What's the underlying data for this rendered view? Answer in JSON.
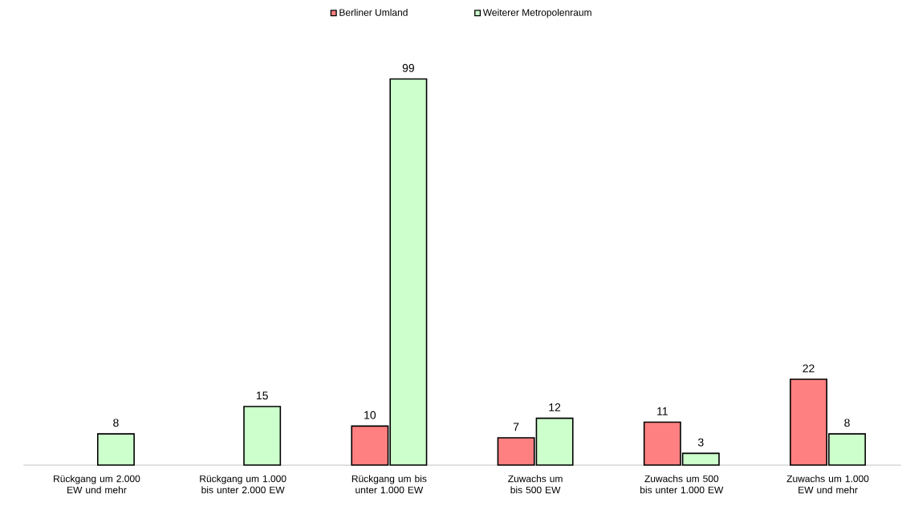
{
  "chart_data": {
    "type": "bar",
    "categories": [
      "Rückgang um 2.000 EW und mehr",
      "Rückgang um 1.000 bis unter 2.000 EW",
      "Rückgang um bis unter 1.000 EW",
      "Zuwachs um bis 500 EW",
      "Zuwachs um 500 bis unter 1.000 EW",
      "Zuwachs um 1.000 EW und mehr"
    ],
    "series": [
      {
        "name": "Berliner Umland",
        "color": "#ff8080",
        "values": [
          null,
          null,
          10,
          7,
          11,
          22
        ]
      },
      {
        "name": "Weiterer Metropolenraum",
        "color": "#ccffcc",
        "values": [
          8,
          15,
          99,
          12,
          3,
          8
        ]
      }
    ],
    "data_labels": true,
    "legend": "top"
  }
}
